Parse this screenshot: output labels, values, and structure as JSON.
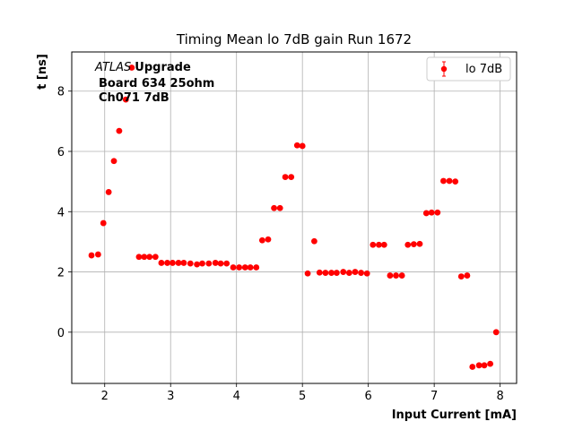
{
  "chart_data": {
    "type": "scatter",
    "title": "Timing Mean lo 7dB gain Run 1672",
    "xlabel": "Input Current [mA]",
    "ylabel": "t [ns]",
    "xlim": [
      1.5,
      8.25
    ],
    "ylim": [
      -1.7,
      9.3
    ],
    "xticks": [
      2,
      3,
      4,
      5,
      6,
      7,
      8
    ],
    "yticks": [
      0,
      2,
      4,
      6,
      8
    ],
    "grid": true,
    "legend_position": "top-right",
    "annotation": {
      "italic": "ATLAS",
      "bold": "Upgrade",
      "line2": "Board 634 25ohm",
      "line3": "Ch071 7dB"
    },
    "series": [
      {
        "name": "lo 7dB",
        "color": "#ff0000",
        "x": [
          1.8,
          1.9,
          1.98,
          2.06,
          2.14,
          2.22,
          2.32,
          2.41,
          2.52,
          2.6,
          2.68,
          2.77,
          2.86,
          2.95,
          3.03,
          3.12,
          3.2,
          3.3,
          3.4,
          3.48,
          3.58,
          3.68,
          3.76,
          3.85,
          3.95,
          4.04,
          4.13,
          4.21,
          4.3,
          4.39,
          4.48,
          4.57,
          4.66,
          4.74,
          4.83,
          4.92,
          5.0,
          5.08,
          5.18,
          5.26,
          5.35,
          5.44,
          5.52,
          5.62,
          5.71,
          5.8,
          5.89,
          5.98,
          6.07,
          6.16,
          6.24,
          6.33,
          6.42,
          6.51,
          6.6,
          6.69,
          6.78,
          6.88,
          6.96,
          7.05,
          7.14,
          7.23,
          7.32,
          7.41,
          7.5,
          7.58,
          7.68,
          7.76,
          7.85,
          7.94
        ],
        "y": [
          2.55,
          2.58,
          3.62,
          4.65,
          5.68,
          6.68,
          7.72,
          8.78,
          2.5,
          2.5,
          2.5,
          2.5,
          2.3,
          2.3,
          2.3,
          2.3,
          2.3,
          2.28,
          2.25,
          2.28,
          2.28,
          2.3,
          2.28,
          2.28,
          2.15,
          2.15,
          2.15,
          2.15,
          2.15,
          3.05,
          3.08,
          4.12,
          4.12,
          5.15,
          5.15,
          6.2,
          6.18,
          1.95,
          3.02,
          1.98,
          1.97,
          1.97,
          1.97,
          2.0,
          1.97,
          2.0,
          1.97,
          1.95,
          2.9,
          2.9,
          2.9,
          1.88,
          1.88,
          1.88,
          2.9,
          2.92,
          2.93,
          3.95,
          3.97,
          3.97,
          5.02,
          5.02,
          5.0,
          1.85,
          1.88,
          -1.15,
          -1.1,
          -1.1,
          -1.05,
          0.0
        ],
        "errors": []
      }
    ]
  }
}
